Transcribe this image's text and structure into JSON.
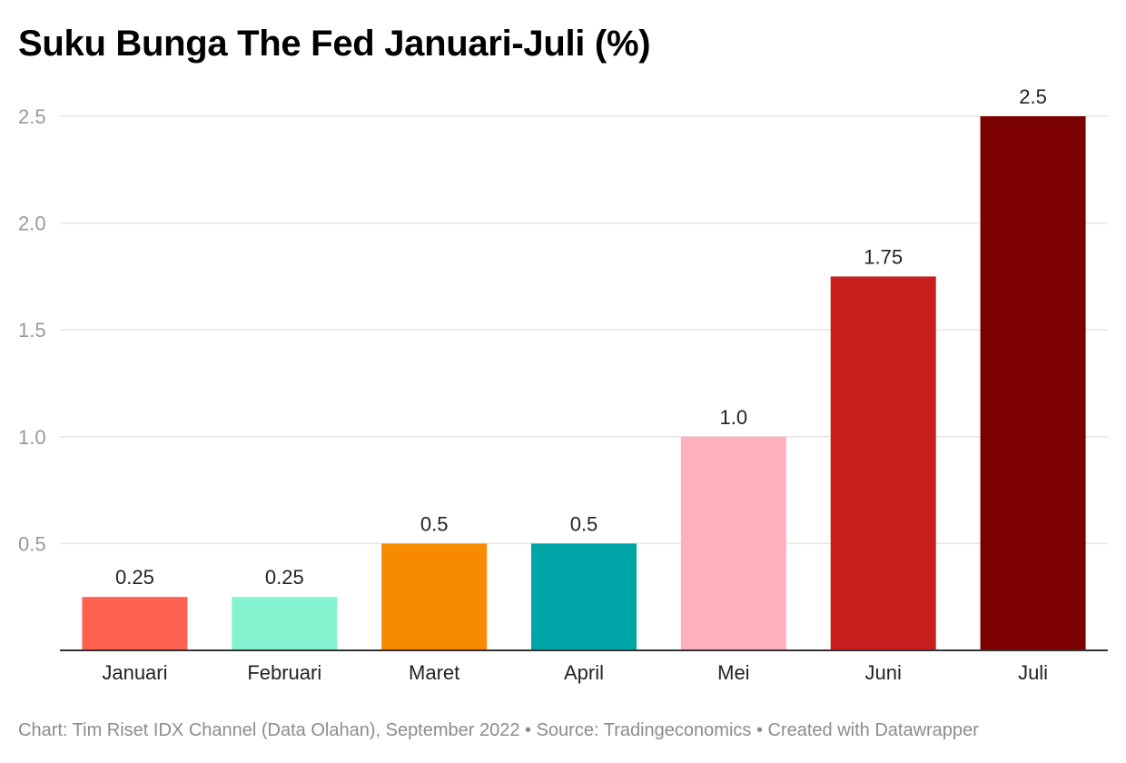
{
  "chart_data": {
    "type": "bar",
    "title": "Suku Bunga The Fed Januari-Juli (%)",
    "categories": [
      "Januari",
      "Februari",
      "Maret",
      "April",
      "Mei",
      "Juni",
      "Juli"
    ],
    "values": [
      0.25,
      0.25,
      0.5,
      0.5,
      1.0,
      1.75,
      2.5
    ],
    "value_labels": [
      "0.25",
      "0.25",
      "0.5",
      "0.5",
      "1.0",
      "1.75",
      "2.5"
    ],
    "bar_colors": [
      "#fe6150",
      "#83f4cf",
      "#f78a00",
      "#00a6a7",
      "#feb0bd",
      "#c81e1e",
      "#7c0000"
    ],
    "yticks": [
      "0.5",
      "1.0",
      "1.5",
      "2.0",
      "2.5"
    ],
    "ylim": [
      0,
      2.5
    ],
    "grid": true,
    "xlabel": "",
    "ylabel": ""
  },
  "footer": {
    "text": "Chart: Tim Riset IDX Channel (Data Olahan), September 2022 • Source: Tradingeconomics • Created with Datawrapper"
  },
  "colors": {
    "gridline": "#e5e5e5",
    "axis": "#333333",
    "tick_text": "#999999",
    "label_text": "#222222",
    "footer_text": "#8c8c8c"
  }
}
